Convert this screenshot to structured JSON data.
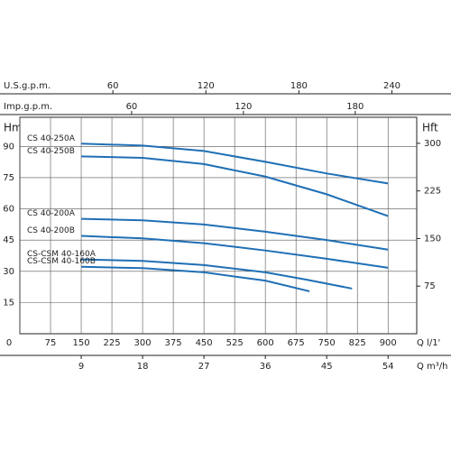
{
  "chart_data": {
    "type": "line",
    "xlabel": "Q l/1'",
    "xlim": [
      0,
      970
    ],
    "xticks": [
      0,
      75,
      150,
      225,
      300,
      375,
      450,
      525,
      600,
      675,
      750,
      825,
      900
    ],
    "x2label": "Q m³/h",
    "x2lim": [
      0,
      58.2
    ],
    "x2ticks": [
      9,
      18,
      27,
      36,
      45,
      54
    ],
    "x3label": "U.S.g.p.m.",
    "x3lim": [
      0,
      256
    ],
    "x3ticks": [
      60,
      120,
      180,
      240
    ],
    "x4label": "Imp.g.p.m.",
    "x4lim": [
      0,
      213
    ],
    "x4ticks": [
      60,
      120,
      180
    ],
    "ylabel": "Hm",
    "ylim": [
      0,
      104
    ],
    "yticks": [
      15,
      30,
      45,
      60,
      75,
      90
    ],
    "y2label": "Hft",
    "y2lim": [
      0,
      341
    ],
    "y2ticks": [
      75,
      150,
      225,
      300
    ],
    "grid": true,
    "series": [
      {
        "name": "CS 40-250A",
        "color": "#1f6fb5",
        "x": [
          150,
          300,
          450,
          600,
          750,
          900
        ],
        "values": [
          91.3,
          90.4,
          87.8,
          82.6,
          77,
          72.2
        ]
      },
      {
        "name": "CS 40-250B",
        "color": "#1f6fb5",
        "x": [
          150,
          300,
          450,
          600,
          750,
          900
        ],
        "values": [
          85.2,
          84.5,
          81.5,
          75.5,
          67,
          56.5
        ]
      },
      {
        "name": "CS 40-200A",
        "color": "#1f6fb5",
        "x": [
          150,
          300,
          450,
          600,
          750,
          900
        ],
        "values": [
          55.2,
          54.5,
          52.5,
          49,
          45,
          40.4
        ]
      },
      {
        "name": "CS 40-200B",
        "color": "#1f6fb5",
        "x": [
          150,
          300,
          450,
          600,
          750,
          900
        ],
        "values": [
          47,
          45.8,
          43.5,
          40,
          36,
          31.7
        ]
      },
      {
        "name": "CS-CSM 40-160A",
        "color": "#1f6fb5",
        "x": [
          150,
          300,
          450,
          600,
          700,
          812
        ],
        "values": [
          35.7,
          35,
          33,
          29.5,
          26,
          21.7
        ]
      },
      {
        "name": "CS-CSM 40-160B",
        "color": "#1f6fb5",
        "x": [
          150,
          300,
          450,
          600,
          708
        ],
        "values": [
          32.2,
          31.5,
          29.5,
          25.5,
          20.4
        ]
      }
    ]
  }
}
